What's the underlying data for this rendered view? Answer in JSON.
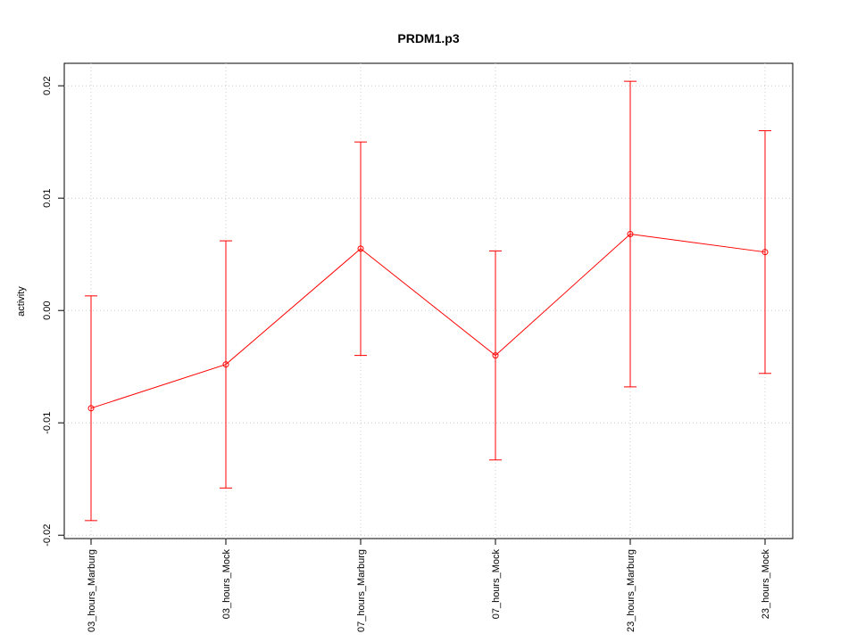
{
  "chart_data": {
    "type": "line",
    "title": "PRDM1.p3",
    "ylabel": "activity",
    "categories": [
      "03_hours_Marburg",
      "03_hours_Mock",
      "07_hours_Marburg",
      "07_hours_Mock",
      "23_hours_Marburg",
      "23_hours_Mock"
    ],
    "series": [
      {
        "color": "#ff0000",
        "values": [
          -0.0087,
          -0.0048,
          0.0055,
          -0.004,
          0.0068,
          0.0052
        ],
        "errors": [
          0.01,
          0.011,
          0.0095,
          0.0093,
          0.0136,
          0.0108
        ]
      }
    ],
    "ylim": [
      -0.0203,
      0.022
    ],
    "yticks": [
      -0.02,
      -0.01,
      {
        "value": 0,
        "label": "0.00"
      },
      0.01,
      0.02
    ],
    "grid": true
  }
}
